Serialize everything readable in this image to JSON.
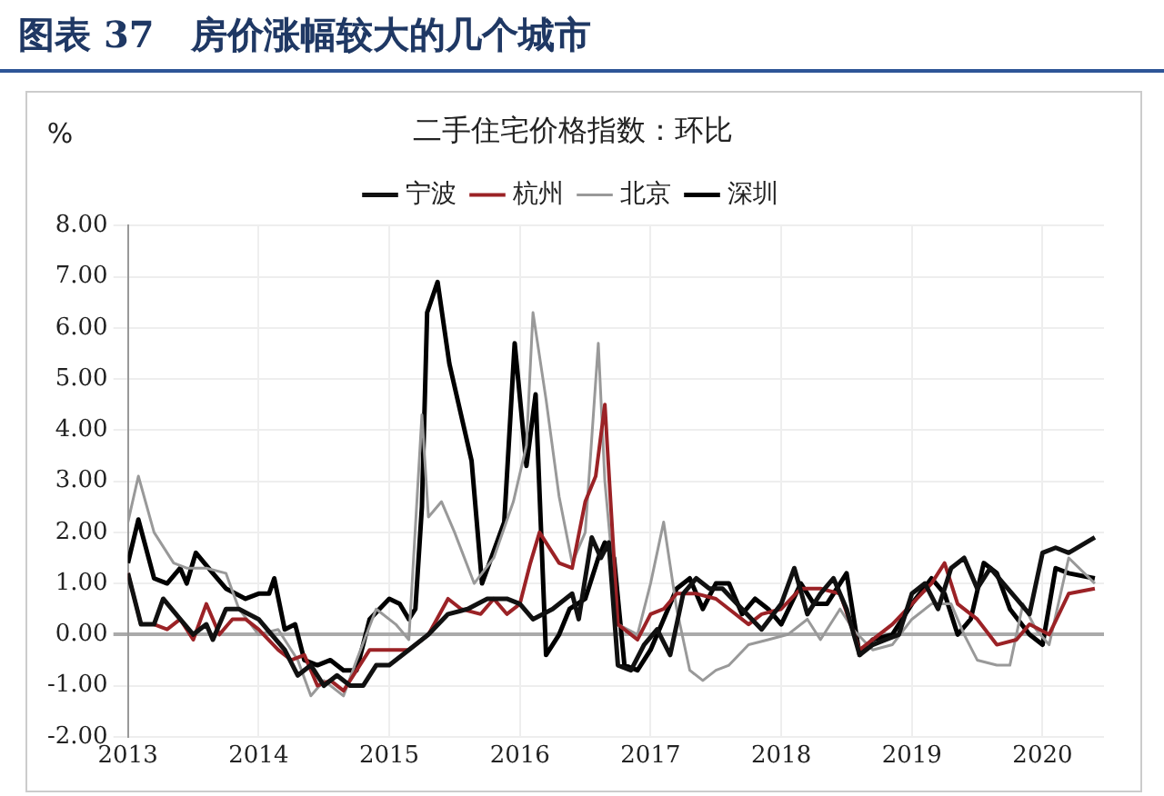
{
  "chart_data": {
    "type": "line",
    "title": "图表 37　房价涨幅较大的几个城市",
    "subtitle": "二手住宅价格指数：环比",
    "ylabel": "%",
    "xlim": [
      2013,
      2020.47
    ],
    "xticks": [
      2013,
      2014,
      2015,
      2016,
      2017,
      2018,
      2019,
      2020
    ],
    "ylim": [
      -2,
      8
    ],
    "yticks": [
      {
        "value": -2,
        "label": "-2.00"
      },
      {
        "value": -1,
        "label": "-1.00"
      },
      {
        "value": 0,
        "label": "0.00"
      },
      {
        "value": 1,
        "label": "1.00"
      },
      {
        "value": 2,
        "label": "2.00"
      },
      {
        "value": 3,
        "label": "3.00"
      },
      {
        "value": 4,
        "label": "4.00"
      },
      {
        "value": 5,
        "label": "5.00"
      },
      {
        "value": 6,
        "label": "6.00"
      },
      {
        "value": 7,
        "label": "7.00"
      },
      {
        "value": 8,
        "label": "8.00"
      }
    ],
    "grid": true,
    "legend": "top",
    "marker": "none",
    "line_style": "solid",
    "series": [
      {
        "name": "宁波",
        "color": "#111111",
        "x": [
          2013.0,
          2013.1,
          2013.2,
          2013.27,
          2013.4,
          2013.5,
          2013.6,
          2013.65,
          2013.75,
          2013.85,
          2014.0,
          2014.1,
          2014.2,
          2014.3,
          2014.4,
          2014.5,
          2014.6,
          2014.7,
          2014.8,
          2014.9,
          2015.0,
          2015.15,
          2015.3,
          2015.45,
          2015.6,
          2015.75,
          2015.9,
          2016.0,
          2016.1,
          2016.25,
          2016.4,
          2016.45,
          2016.55,
          2016.62,
          2016.68,
          2016.75,
          2016.85,
          2016.95,
          2017.05,
          2017.15,
          2017.25,
          2017.35,
          2017.45,
          2017.55,
          2017.7,
          2017.85,
          2018.0,
          2018.1,
          2018.2,
          2018.3,
          2018.4,
          2018.5,
          2018.6,
          2018.7,
          2018.8,
          2018.9,
          2019.0,
          2019.1,
          2019.2,
          2019.3,
          2019.4,
          2019.5,
          2019.6,
          2019.7,
          2019.8,
          2019.9,
          2020.0,
          2020.1,
          2020.2,
          2020.4
        ],
        "values": [
          1.2,
          0.2,
          0.2,
          0.7,
          0.3,
          0.0,
          0.2,
          -0.1,
          0.5,
          0.5,
          0.3,
          0.0,
          -0.3,
          -0.8,
          -0.6,
          -1.0,
          -0.8,
          -1.0,
          -1.0,
          -0.6,
          -0.6,
          -0.3,
          0.0,
          0.4,
          0.5,
          0.7,
          0.7,
          0.6,
          0.3,
          0.5,
          0.8,
          0.3,
          1.9,
          1.5,
          1.8,
          -0.6,
          -0.7,
          -0.2,
          0.1,
          -0.4,
          0.8,
          1.1,
          0.9,
          0.9,
          0.5,
          0.1,
          0.6,
          1.3,
          0.4,
          0.8,
          1.1,
          0.5,
          -0.4,
          -0.2,
          -0.1,
          0.0,
          0.8,
          1.0,
          0.5,
          1.3,
          1.5,
          0.9,
          1.3,
          1.0,
          0.7,
          0.4,
          1.6,
          1.7,
          1.6,
          1.9
        ]
      },
      {
        "name": "杭州",
        "color": "#9b2226",
        "x": [
          2013.0,
          2013.1,
          2013.2,
          2013.3,
          2013.4,
          2013.5,
          2013.6,
          2013.7,
          2013.8,
          2013.9,
          2014.0,
          2014.15,
          2014.25,
          2014.35,
          2014.45,
          2014.55,
          2014.65,
          2014.75,
          2014.85,
          2015.0,
          2015.15,
          2015.3,
          2015.45,
          2015.55,
          2015.7,
          2015.8,
          2015.9,
          2016.0,
          2016.08,
          2016.15,
          2016.3,
          2016.4,
          2016.5,
          2016.58,
          2016.65,
          2016.75,
          2016.9,
          2017.0,
          2017.1,
          2017.2,
          2017.35,
          2017.5,
          2017.6,
          2017.75,
          2017.85,
          2018.0,
          2018.15,
          2018.3,
          2018.45,
          2018.6,
          2018.7,
          2018.85,
          2019.0,
          2019.15,
          2019.25,
          2019.35,
          2019.5,
          2019.65,
          2019.8,
          2019.9,
          2020.05,
          2020.2,
          2020.4
        ],
        "values": [
          1.2,
          0.2,
          0.2,
          0.1,
          0.3,
          -0.1,
          0.6,
          0.0,
          0.3,
          0.3,
          0.1,
          -0.3,
          -0.5,
          -0.4,
          -1.0,
          -0.9,
          -1.1,
          -0.7,
          -0.3,
          -0.3,
          -0.3,
          0.0,
          0.7,
          0.5,
          0.4,
          0.7,
          0.4,
          0.6,
          1.4,
          2.0,
          1.4,
          1.3,
          2.6,
          3.1,
          4.5,
          0.2,
          -0.1,
          0.4,
          0.5,
          0.8,
          0.8,
          0.7,
          0.5,
          0.2,
          0.4,
          0.5,
          0.9,
          0.9,
          0.8,
          -0.3,
          -0.1,
          0.2,
          0.6,
          1.0,
          1.4,
          0.6,
          0.3,
          -0.2,
          -0.1,
          0.2,
          0.0,
          0.8,
          0.9
        ]
      },
      {
        "name": "北京",
        "color": "#999999",
        "x": [
          2013.0,
          2013.08,
          2013.2,
          2013.35,
          2013.45,
          2013.6,
          2013.75,
          2013.85,
          2014.0,
          2014.15,
          2014.3,
          2014.4,
          2014.5,
          2014.65,
          2014.75,
          2014.9,
          2015.05,
          2015.15,
          2015.25,
          2015.3,
          2015.4,
          2015.5,
          2015.65,
          2015.8,
          2015.95,
          2016.05,
          2016.1,
          2016.2,
          2016.3,
          2016.4,
          2016.5,
          2016.6,
          2016.65,
          2016.75,
          2016.9,
          2017.0,
          2017.1,
          2017.2,
          2017.3,
          2017.4,
          2017.5,
          2017.6,
          2017.75,
          2017.9,
          2018.05,
          2018.2,
          2018.3,
          2018.45,
          2018.55,
          2018.7,
          2018.85,
          2019.0,
          2019.15,
          2019.3,
          2019.4,
          2019.5,
          2019.65,
          2019.75,
          2019.85,
          2019.95,
          2020.05,
          2020.2,
          2020.4
        ],
        "values": [
          2.2,
          3.1,
          2.0,
          1.4,
          1.3,
          1.3,
          1.2,
          0.5,
          0.0,
          0.1,
          -0.5,
          -1.2,
          -0.9,
          -1.2,
          -0.5,
          0.5,
          0.2,
          -0.1,
          4.3,
          2.3,
          2.6,
          2.0,
          1.0,
          1.5,
          2.6,
          3.7,
          6.3,
          4.6,
          2.7,
          1.4,
          2.0,
          5.7,
          3.0,
          0.2,
          0.0,
          1.0,
          2.2,
          0.5,
          -0.7,
          -0.9,
          -0.7,
          -0.6,
          -0.2,
          -0.1,
          0.0,
          0.3,
          -0.1,
          0.5,
          0.1,
          -0.3,
          -0.2,
          0.3,
          0.6,
          0.6,
          0.0,
          -0.5,
          -0.6,
          -0.6,
          0.6,
          0.1,
          -0.2,
          1.5,
          1.0
        ]
      },
      {
        "name": "深圳",
        "color": "#000000",
        "x": [
          2013.0,
          2013.08,
          2013.2,
          2013.3,
          2013.4,
          2013.45,
          2013.52,
          2013.65,
          2013.75,
          2013.9,
          2014.0,
          2014.08,
          2014.12,
          2014.2,
          2014.28,
          2014.35,
          2014.45,
          2014.55,
          2014.65,
          2014.75,
          2014.85,
          2015.0,
          2015.08,
          2015.15,
          2015.2,
          2015.25,
          2015.29,
          2015.37,
          2015.46,
          2015.63,
          2015.71,
          2015.88,
          2015.96,
          2016.05,
          2016.12,
          2016.2,
          2016.3,
          2016.38,
          2016.5,
          2016.6,
          2016.65,
          2016.72,
          2016.8,
          2016.9,
          2017.0,
          2017.1,
          2017.2,
          2017.3,
          2017.4,
          2017.5,
          2017.6,
          2017.7,
          2017.8,
          2017.9,
          2018.0,
          2018.15,
          2018.25,
          2018.35,
          2018.5,
          2018.6,
          2018.7,
          2018.85,
          2019.0,
          2019.15,
          2019.25,
          2019.35,
          2019.45,
          2019.55,
          2019.65,
          2019.75,
          2019.9,
          2020.0,
          2020.1,
          2020.2,
          2020.4
        ],
        "values": [
          1.4,
          2.25,
          1.1,
          1.0,
          1.3,
          1.0,
          1.6,
          1.2,
          0.9,
          0.7,
          0.8,
          0.8,
          1.1,
          0.1,
          0.2,
          -0.5,
          -0.6,
          -0.5,
          -0.7,
          -0.7,
          0.3,
          0.7,
          0.6,
          0.3,
          0.5,
          2.5,
          6.3,
          6.9,
          5.3,
          3.4,
          1.0,
          2.2,
          5.7,
          3.3,
          4.7,
          -0.4,
          0.0,
          0.5,
          0.7,
          1.5,
          1.8,
          1.5,
          -0.6,
          -0.7,
          -0.3,
          0.3,
          0.9,
          1.1,
          0.5,
          1.0,
          1.0,
          0.4,
          0.7,
          0.5,
          0.2,
          1.0,
          0.6,
          0.6,
          1.2,
          -0.4,
          -0.1,
          0.0,
          0.6,
          1.1,
          0.8,
          0.0,
          0.3,
          1.4,
          1.2,
          0.5,
          0.0,
          -0.2,
          1.3,
          1.2,
          1.1
        ]
      }
    ]
  }
}
